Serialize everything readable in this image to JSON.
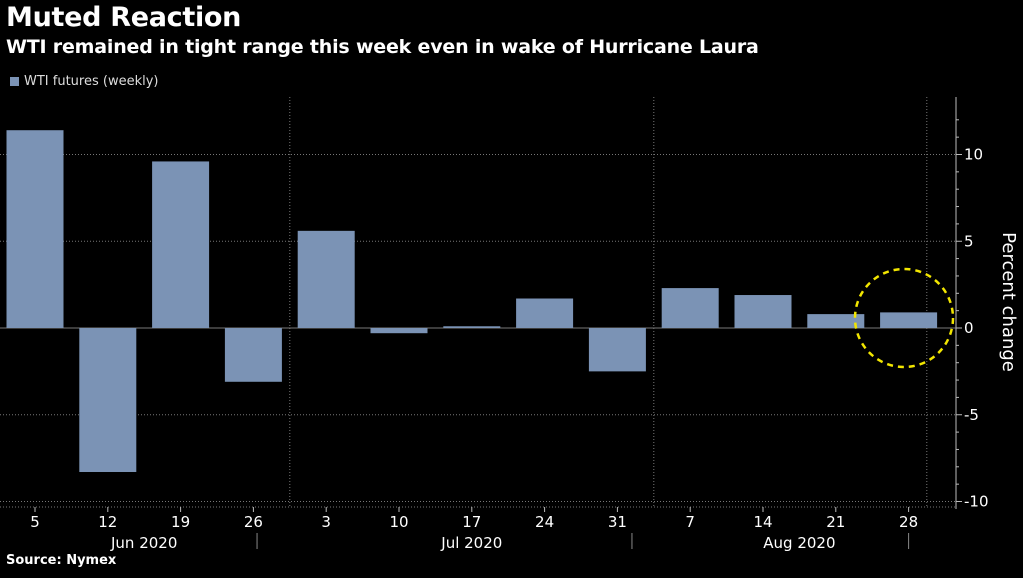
{
  "header": {
    "title": "Muted Reaction",
    "subtitle": "WTI remained in tight range this week even in wake of Hurricane Laura"
  },
  "legend": {
    "label": "WTI futures (weekly)"
  },
  "footer": {
    "source": "Source: Nymex"
  },
  "colors": {
    "bar": "#7b93b5",
    "highlight_circle": "#f2e600",
    "background": "#000000",
    "grid": "#777777"
  },
  "chart_data": {
    "type": "bar",
    "categories": [
      "5",
      "12",
      "19",
      "26",
      "3",
      "10",
      "17",
      "24",
      "31",
      "7",
      "14",
      "21",
      "28"
    ],
    "month_labels": [
      "Jun 2020",
      "Jul 2020",
      "Aug 2020"
    ],
    "series": [
      {
        "name": "WTI futures (weekly)",
        "values": [
          11.4,
          -8.3,
          9.6,
          -3.1,
          5.6,
          -0.3,
          0.1,
          1.7,
          -2.5,
          2.3,
          1.9,
          0.8,
          0.9
        ]
      }
    ],
    "ylabel": "Percent change",
    "yticks": [
      10,
      5,
      0,
      -5,
      -10
    ],
    "ylim": [
      -10.5,
      13
    ],
    "grid": true,
    "legend_position": "top-left",
    "annotation": "dashed circle highlighting the latest week (28)"
  }
}
